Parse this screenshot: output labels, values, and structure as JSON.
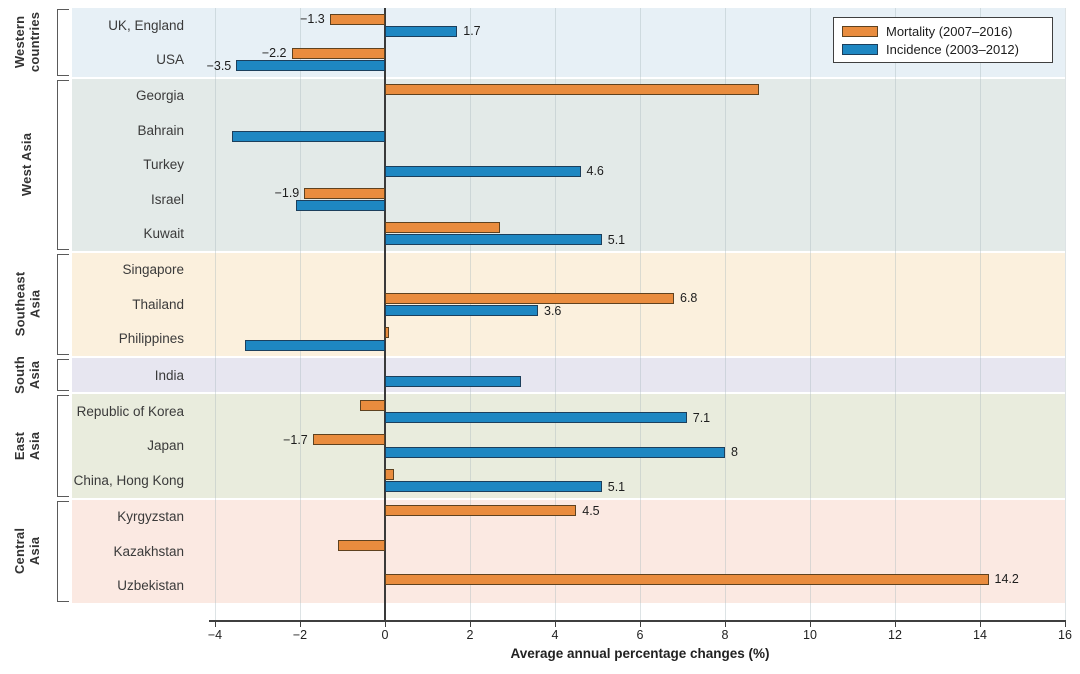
{
  "chart_data": {
    "type": "bar",
    "orientation": "horizontal",
    "xlabel": "Average annual percentage changes (%)",
    "xlim": [
      -4,
      16
    ],
    "xticks": [
      -4,
      -2,
      0,
      2,
      4,
      6,
      8,
      10,
      12,
      14,
      16
    ],
    "xtick_labels": [
      "−4",
      "−2",
      "0",
      "2",
      "4",
      "6",
      "8",
      "10",
      "12",
      "14",
      "16"
    ],
    "grid": "vertical at every 2 units, zero line emphasized",
    "legend_position": "top-right",
    "series_meta": [
      {
        "name": "Mortality (2007–2016)",
        "color": "#E98C3E",
        "border": "#5e4220"
      },
      {
        "name": "Incidence (2003–2012)",
        "color": "#1E87C2",
        "border": "#1c3f5c"
      }
    ],
    "groups": [
      {
        "region": "Western\ncountries",
        "band_color": "#E7F0F6",
        "rows": [
          {
            "country": "UK, England",
            "mortality": -1.3,
            "mortality_label": "−1.3",
            "incidence": 1.7,
            "incidence_label": "1.7"
          },
          {
            "country": "USA",
            "mortality": -2.2,
            "mortality_label": "−2.2",
            "incidence": -3.5,
            "incidence_label": "−3.5"
          }
        ]
      },
      {
        "region": "West Asia",
        "band_color": "#E3EAE8",
        "rows": [
          {
            "country": "Georgia",
            "mortality": 8.8,
            "mortality_label": null,
            "incidence": null,
            "incidence_label": null
          },
          {
            "country": "Bahrain",
            "mortality": null,
            "mortality_label": null,
            "incidence": -3.6,
            "incidence_label": null
          },
          {
            "country": "Turkey",
            "mortality": null,
            "mortality_label": null,
            "incidence": 4.6,
            "incidence_label": "4.6"
          },
          {
            "country": "Israel",
            "mortality": -1.9,
            "mortality_label": "−1.9",
            "incidence": -2.1,
            "incidence_label": null
          },
          {
            "country": "Kuwait",
            "mortality": 2.7,
            "mortality_label": null,
            "incidence": 5.1,
            "incidence_label": "5.1"
          }
        ]
      },
      {
        "region": "Southeast\nAsia",
        "band_color": "#FBF0DD",
        "rows": [
          {
            "country": "Singapore",
            "mortality": null,
            "mortality_label": null,
            "incidence": null,
            "incidence_label": null
          },
          {
            "country": "Thailand",
            "mortality": 6.8,
            "mortality_label": "6.8",
            "incidence": 3.6,
            "incidence_label": "3.6"
          },
          {
            "country": "Philippines",
            "mortality": 0.1,
            "mortality_label": null,
            "incidence": -3.3,
            "incidence_label": null
          }
        ]
      },
      {
        "region": "South\nAsia",
        "band_color": "#E7E6F0",
        "rows": [
          {
            "country": "India",
            "mortality": null,
            "mortality_label": null,
            "incidence": 3.2,
            "incidence_label": null
          }
        ]
      },
      {
        "region": "East\nAsia",
        "band_color": "#E9ECDD",
        "rows": [
          {
            "country": "Republic of Korea",
            "mortality": -0.6,
            "mortality_label": null,
            "incidence": 7.1,
            "incidence_label": "7.1"
          },
          {
            "country": "Japan",
            "mortality": -1.7,
            "mortality_label": "−1.7",
            "incidence": 8,
            "incidence_label": "8"
          },
          {
            "country": "China, Hong Kong",
            "mortality": 0.2,
            "mortality_label": null,
            "incidence": 5.1,
            "incidence_label": "5.1"
          }
        ]
      },
      {
        "region": "Central\nAsia",
        "band_color": "#FBE9E2",
        "rows": [
          {
            "country": "Kyrgyzstan",
            "mortality": 4.5,
            "mortality_label": "4.5",
            "incidence": null,
            "incidence_label": null
          },
          {
            "country": "Kazakhstan",
            "mortality": -1.1,
            "mortality_label": null,
            "incidence": null,
            "incidence_label": null
          },
          {
            "country": "Uzbekistan",
            "mortality": 14.2,
            "mortality_label": "14.2",
            "incidence": null,
            "incidence_label": null
          }
        ]
      }
    ]
  }
}
